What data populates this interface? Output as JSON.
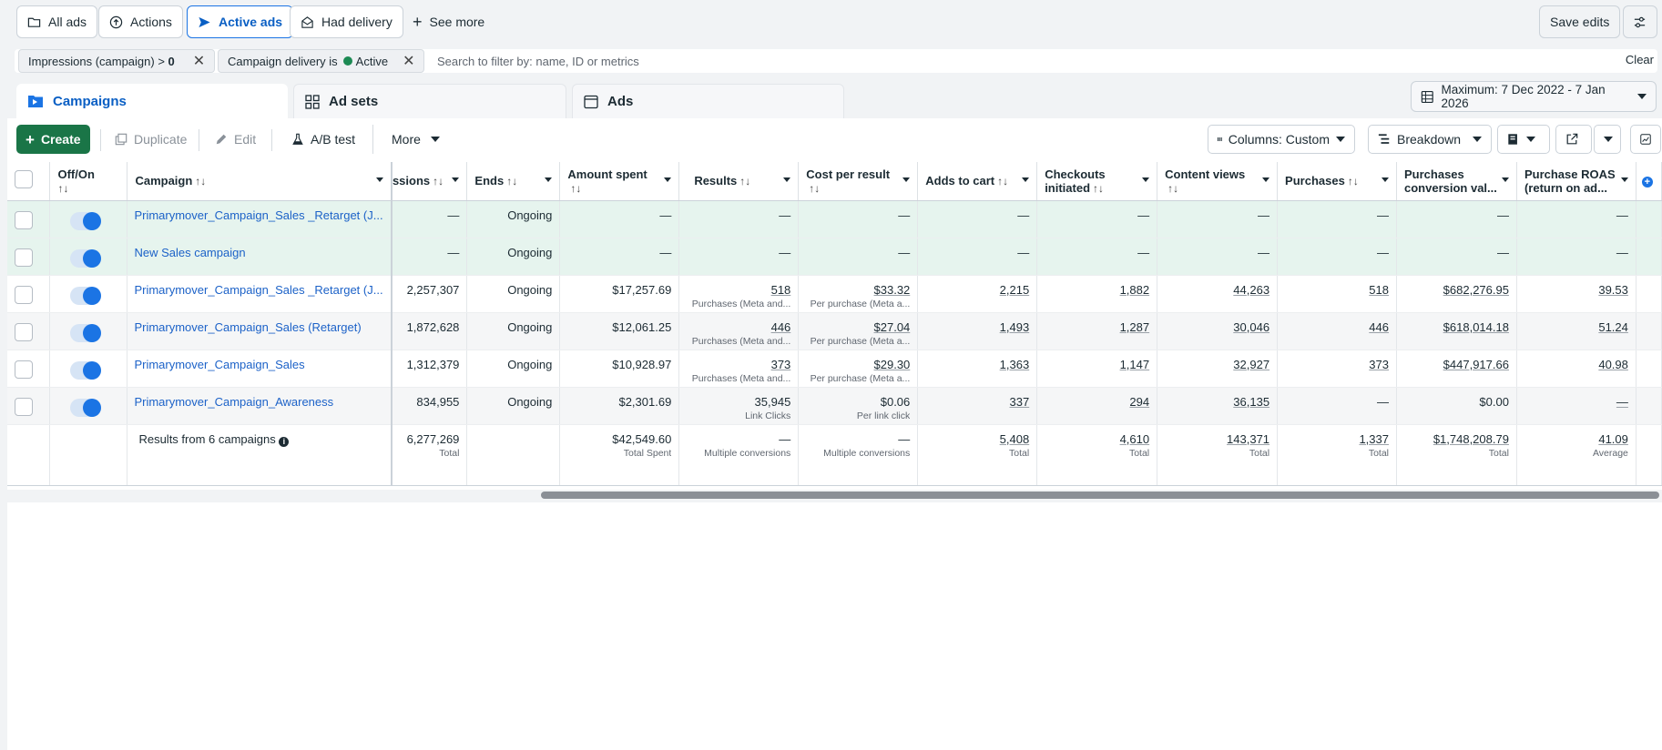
{
  "topbar": {
    "all_ads": "All ads",
    "actions": "Actions",
    "active_ads": "Active ads",
    "had_delivery": "Had delivery",
    "see_more": "See more",
    "save_edits": "Save edits"
  },
  "filters": {
    "chip1_label": "Impressions (campaign) > ",
    "chip1_value": "0",
    "chip2_label": "Campaign delivery is",
    "chip2_value": "Active",
    "search_placeholder": "Search to filter by: name, ID or metrics",
    "clear": "Clear"
  },
  "tabs": {
    "campaigns": "Campaigns",
    "ad_sets": "Ad sets",
    "ads": "Ads"
  },
  "date_range": "Maximum: 7 Dec 2022 - 7 Jan 2026",
  "toolbar": {
    "create": "Create",
    "duplicate": "Duplicate",
    "edit": "Edit",
    "ab_test": "A/B test",
    "more": "More",
    "columns": "Columns: Custom",
    "breakdown": "Breakdown"
  },
  "columns": {
    "off_on": "Off/On",
    "campaign": "Campaign",
    "impressions": "ssions",
    "ends": "Ends",
    "amount_spent": "Amount spent",
    "results": "Results",
    "cost_per_result": "Cost per result",
    "adds_to_cart": "Adds to cart",
    "checkouts_1": "Checkouts",
    "checkouts_2": "initiated",
    "content_views": "Content views",
    "purchases": "Purchases",
    "pcv_1": "Purchases",
    "pcv_2": "conversion val...",
    "roas_1": "Purchase ROAS",
    "roas_2": "(return on ad...",
    "sort_glyph": "↑↓"
  },
  "rows": [
    {
      "name": "Primarymover_Campaign_Sales _Retarget (J...",
      "impressions": "—",
      "ends": "Ongoing",
      "spent": "—",
      "results": "—",
      "results_sub": "",
      "cpr": "—",
      "cpr_sub": "",
      "atc": "—",
      "checkouts": "—",
      "views": "—",
      "purchases": "—",
      "pcv": "—",
      "roas": "—"
    },
    {
      "name": "New Sales campaign",
      "impressions": "—",
      "ends": "Ongoing",
      "spent": "—",
      "results": "—",
      "results_sub": "",
      "cpr": "—",
      "cpr_sub": "",
      "atc": "—",
      "checkouts": "—",
      "views": "—",
      "purchases": "—",
      "pcv": "—",
      "roas": "—"
    },
    {
      "name": "Primarymover_Campaign_Sales _Retarget (J...",
      "impressions": "2,257,307",
      "ends": "Ongoing",
      "spent": "$17,257.69",
      "results": "518",
      "results_sub": "Purchases (Meta and...",
      "cpr": "$33.32",
      "cpr_sub": "Per purchase (Meta a...",
      "atc": "2,215",
      "checkouts": "1,882",
      "views": "44,263",
      "purchases": "518",
      "pcv": "$682,276.95",
      "roas": "39.53"
    },
    {
      "name": "Primarymover_Campaign_Sales (Retarget)",
      "impressions": "1,872,628",
      "ends": "Ongoing",
      "spent": "$12,061.25",
      "results": "446",
      "results_sub": "Purchases (Meta and...",
      "cpr": "$27.04",
      "cpr_sub": "Per purchase (Meta a...",
      "atc": "1,493",
      "checkouts": "1,287",
      "views": "30,046",
      "purchases": "446",
      "pcv": "$618,014.18",
      "roas": "51.24"
    },
    {
      "name": "Primarymover_Campaign_Sales",
      "impressions": "1,312,379",
      "ends": "Ongoing",
      "spent": "$10,928.97",
      "results": "373",
      "results_sub": "Purchases (Meta and...",
      "cpr": "$29.30",
      "cpr_sub": "Per purchase (Meta a...",
      "atc": "1,363",
      "checkouts": "1,147",
      "views": "32,927",
      "purchases": "373",
      "pcv": "$447,917.66",
      "roas": "40.98"
    },
    {
      "name": "Primarymover_Campaign_Awareness",
      "impressions": "834,955",
      "ends": "Ongoing",
      "spent": "$2,301.69",
      "results": "35,945",
      "results_sub": "Link Clicks",
      "cpr": "$0.06",
      "cpr_sub": "Per link click",
      "atc": "337",
      "checkouts": "294",
      "views": "36,135",
      "purchases": "—",
      "pcv": "$0.00",
      "roas": "—"
    }
  ],
  "totals": {
    "label": "Results from 6 campaigns",
    "impressions": "6,277,269",
    "impressions_sub": "Total",
    "spent": "$42,549.60",
    "spent_sub": "Total Spent",
    "results": "—",
    "results_sub": "Multiple conversions",
    "cpr": "—",
    "cpr_sub": "Multiple conversions",
    "atc": "5,408",
    "atc_sub": "Total",
    "checkouts": "4,610",
    "checkouts_sub": "Total",
    "views": "143,371",
    "views_sub": "Total",
    "purchases": "1,337",
    "purchases_sub": "Total",
    "pcv": "$1,748,208.79",
    "pcv_sub": "Total",
    "roas": "41.09",
    "roas_sub": "Average"
  }
}
